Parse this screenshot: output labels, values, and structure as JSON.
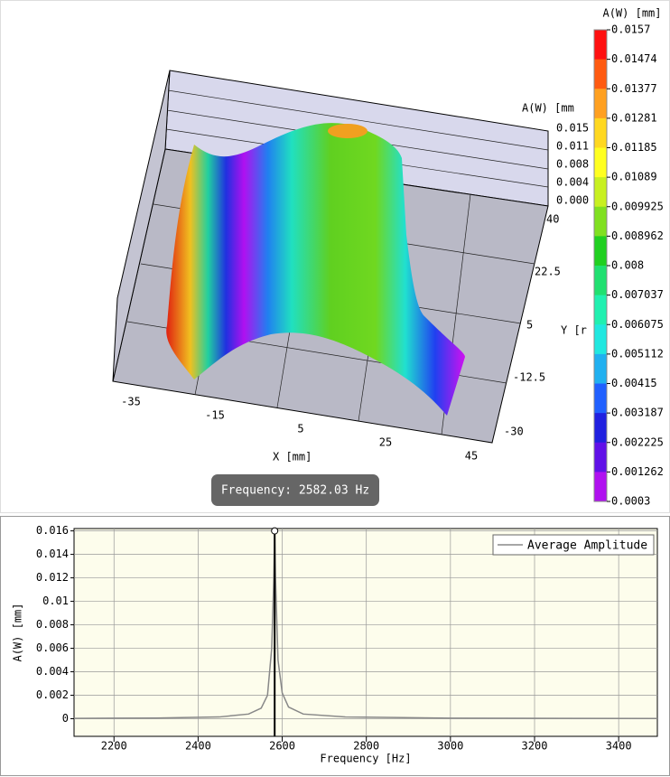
{
  "surface_view": {
    "x_axis_label": "X [mm]",
    "y_axis_label": "Y [r",
    "z_axis_label": "A(W) [mm",
    "x_ticks": [
      -35,
      -15,
      5,
      25,
      45
    ],
    "y_ticks": [
      40,
      22.5,
      5,
      -12.5,
      -30
    ],
    "z_ticks": [
      "0.015",
      "0.011",
      "0.008",
      "0.004",
      "0.000"
    ],
    "frequency_badge": "Frequency: 2582.03 Hz"
  },
  "colorbar": {
    "title": "A(W) [mm]",
    "ticks": [
      0.0157,
      0.01474,
      0.01377,
      0.01281,
      0.01185,
      0.01089,
      0.009925,
      0.008962,
      0.008,
      0.007037,
      0.006075,
      0.005112,
      0.00415,
      0.003187,
      0.002225,
      0.001262,
      0.0003
    ],
    "colors": [
      "#ff1010",
      "#ff5a10",
      "#ffa020",
      "#ffd820",
      "#ffff20",
      "#c8f020",
      "#80e020",
      "#20d020",
      "#20e070",
      "#20f0b0",
      "#20e8e0",
      "#20b0f0",
      "#2060ff",
      "#2020e0",
      "#6010e8",
      "#b010f0"
    ]
  },
  "chart_data": {
    "type": "line",
    "x": [
      2105,
      2300,
      2450,
      2520,
      2550,
      2565,
      2575,
      2580,
      2582.03,
      2584,
      2590,
      2600,
      2615,
      2650,
      2750,
      3000,
      3492
    ],
    "series": [
      {
        "name": "Average Amplitude",
        "color": "#888888",
        "values": [
          3e-05,
          6e-05,
          0.00015,
          0.0004,
          0.0009,
          0.002,
          0.006,
          0.012,
          0.016,
          0.012,
          0.005,
          0.0022,
          0.001,
          0.0004,
          0.00015,
          5e-05,
          2e-05
        ]
      }
    ],
    "x_label": "Frequency [Hz]",
    "y_label": "A(W) [mm]",
    "xlim": [
      2105,
      3492
    ],
    "ylim": [
      -0.0015,
      0.0162
    ],
    "xticks": [
      2200,
      2400,
      2600,
      2800,
      3000,
      3200,
      3400
    ],
    "yticks": [
      0,
      0.002,
      0.004,
      0.006,
      0.008,
      0.01,
      0.012,
      0.014,
      0.016
    ],
    "grid": true,
    "legend": "top-right"
  }
}
